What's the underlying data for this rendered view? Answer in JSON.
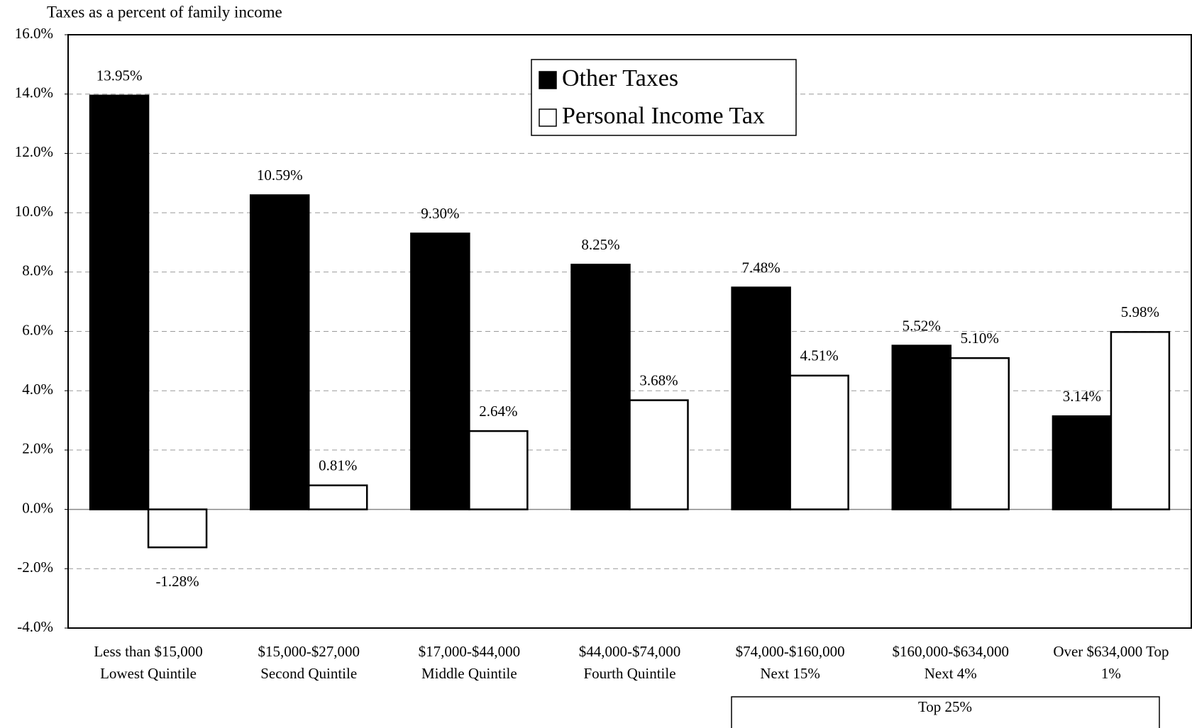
{
  "chart_data": {
    "type": "bar",
    "title": "Taxes as a percent of family income",
    "categories": [
      [
        "Less than $15,000",
        "Lowest Quintile"
      ],
      [
        "$15,000-$27,000",
        "Second Quintile"
      ],
      [
        "$17,000-$44,000",
        "Middle Quintile"
      ],
      [
        "$44,000-$74,000",
        "Fourth Quintile"
      ],
      [
        "$74,000-$160,000",
        "Next 15%"
      ],
      [
        "$160,000-$634,000",
        "Next 4%"
      ],
      [
        "Over $634,000 Top",
        "1%"
      ]
    ],
    "series": [
      {
        "name": "Other Taxes",
        "color": "#000000",
        "values": [
          13.95,
          10.59,
          9.3,
          8.25,
          7.48,
          5.52,
          3.14
        ],
        "value_labels": [
          "13.95%",
          "10.59%",
          "9.30%",
          "8.25%",
          "7.48%",
          "5.52%",
          "3.14%"
        ]
      },
      {
        "name": "Personal Income Tax",
        "color": "#ffffff",
        "values": [
          -1.28,
          0.81,
          2.64,
          3.68,
          4.51,
          5.1,
          5.98
        ],
        "value_labels": [
          "-1.28%",
          "0.81%",
          "2.64%",
          "3.68%",
          "4.51%",
          "5.10%",
          "5.98%"
        ]
      }
    ],
    "ylim": [
      -4,
      16
    ],
    "yticks": [
      {
        "value": -4,
        "label": "-4.0%"
      },
      {
        "value": -2,
        "label": "-2.0%"
      },
      {
        "value": 0,
        "label": "0.0%"
      },
      {
        "value": 2,
        "label": "2.0%"
      },
      {
        "value": 4,
        "label": "4.0%"
      },
      {
        "value": 6,
        "label": "6.0%"
      },
      {
        "value": 8,
        "label": "8.0%"
      },
      {
        "value": 10,
        "label": "10.0%"
      },
      {
        "value": 12,
        "label": "12.0%"
      },
      {
        "value": 14,
        "label": "14.0%"
      },
      {
        "value": 16,
        "label": "16.0%"
      }
    ],
    "grid": true,
    "annotation": "Top 25%"
  }
}
